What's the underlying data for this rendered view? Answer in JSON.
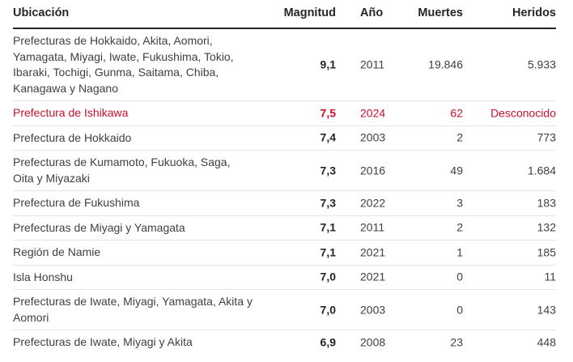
{
  "headers": {
    "location": "Ubicación",
    "magnitude": "Magnitud",
    "year": "Año",
    "deaths": "Muertes",
    "injured": "Heridos"
  },
  "rows": [
    {
      "location": "Prefecturas de Hokkaido, Akita, Aomori, Yamagata, Miyagi, Iwate, Fukushima, Tokio, Ibaraki, Tochigi, Gunma, Saitama, Chiba, Kanagawa y Nagano",
      "magnitude": "9,1",
      "year": "2011",
      "deaths": "19.846",
      "injured": "5.933"
    },
    {
      "location": "Prefectura de Ishikawa",
      "magnitude": "7,5",
      "year": "2024",
      "deaths": "62",
      "injured": "Desconocido"
    },
    {
      "location": "Prefectura de Hokkaido",
      "magnitude": "7,4",
      "year": "2003",
      "deaths": "2",
      "injured": "773"
    },
    {
      "location": "Prefecturas de Kumamoto, Fukuoka, Saga, Oita y Miyazaki",
      "magnitude": "7,3",
      "year": "2016",
      "deaths": "49",
      "injured": "1.684"
    },
    {
      "location": "Prefectura de Fukushima",
      "magnitude": "7,3",
      "year": "2022",
      "deaths": "3",
      "injured": "183"
    },
    {
      "location": "Prefecturas de Miyagi y Yamagata",
      "magnitude": "7,1",
      "year": "2011",
      "deaths": "2",
      "injured": "132"
    },
    {
      "location": "Región de Namie",
      "magnitude": "7,1",
      "year": "2021",
      "deaths": "1",
      "injured": "185"
    },
    {
      "location": "Isla Honshu",
      "magnitude": "7,0",
      "year": "2021",
      "deaths": "0",
      "injured": "11"
    },
    {
      "location": "Prefecturas de Iwate, Miyagi, Yamagata, Akita y Aomori",
      "magnitude": "7,0",
      "year": "2003",
      "deaths": "0",
      "injured": "143"
    },
    {
      "location": "Prefecturas de Iwate, Miyagi y Akita",
      "magnitude": "6,9",
      "year": "2008",
      "deaths": "23",
      "injured": "448"
    }
  ],
  "colors": {
    "highlight": "#c8102e",
    "text": "#404040",
    "header": "#262626"
  }
}
